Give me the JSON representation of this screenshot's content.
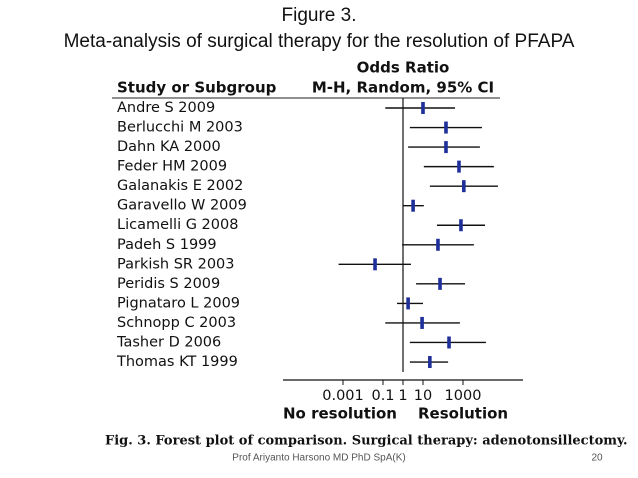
{
  "chart_data": {
    "type": "forest",
    "title": "Figure 3.",
    "subtitle": "Meta-analysis of surgical therapy for the resolution of PFAPA",
    "effect_header": "Odds Ratio",
    "study_header": "Study or Subgroup",
    "method_header": "M-H, Random, 95% CI",
    "x_label_left": "No resolution",
    "x_label_right": "Resolution",
    "caption": "Fig. 3. Forest plot of comparison. Surgical therapy: adenotonsillectomy.",
    "footer": "Prof Ariyanto Harsono MD PhD SpA(K)",
    "page_number": "20",
    "xscale": "log",
    "xlim": [
      1e-06,
      1000000
    ],
    "xticks": [
      0.001,
      0.1,
      1,
      10,
      1000
    ],
    "reference_line": 1,
    "color": "#1f2f9a",
    "categories": [
      "Andre S 2009",
      "Berlucchi M 2003",
      "Dahn KA 2000",
      "Feder HM 2009",
      "Galanakis E 2002",
      "Garavello W 2009",
      "Licamelli G 2008",
      "Padeh S 1999",
      "Parkish SR 2003",
      "Peridis S 2009",
      "Pignataro L 2009",
      "Schnopp C 2003",
      "Tasher D 2006",
      "Thomas KT 1999"
    ],
    "values": [
      10,
      141,
      141,
      630,
      1100,
      3.2,
      790,
      56,
      0.04,
      71,
      1.8,
      9,
      200,
      22
    ],
    "ci_lower": [
      0.13,
      2.2,
      1.8,
      11,
      22,
      1.0,
      50,
      0.9,
      0.0006,
      4.5,
      0.5,
      0.13,
      2.2,
      2.2
    ],
    "ci_upper": [
      400,
      8900,
      7000,
      35000,
      56000,
      11,
      12600,
      3500,
      2.5,
      1260,
      10,
      700,
      14000,
      180
    ]
  }
}
